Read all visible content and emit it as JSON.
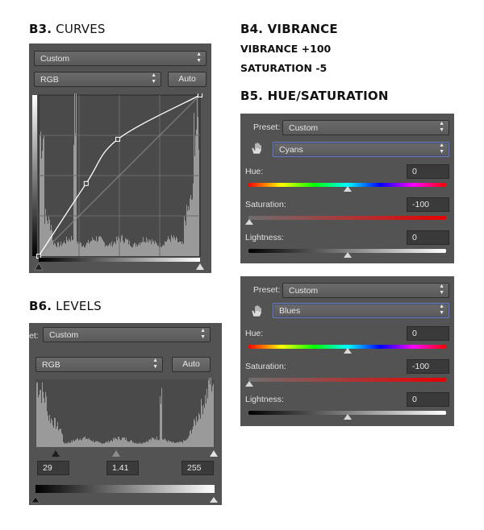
{
  "headings": {
    "b3": {
      "code": "B3.",
      "title": "CURVES"
    },
    "b4": {
      "code": "B4.",
      "title": "VIBRANCE"
    },
    "b4_lines": [
      "VIBRANCE +100",
      "SATURATION -5"
    ],
    "b5": {
      "code": "B5.",
      "title": "HUE/SATURATION"
    },
    "b6": {
      "code": "B6.",
      "title": "LEVELS"
    }
  },
  "curves": {
    "preset": "Custom",
    "channel": "RGB",
    "auto_label": "Auto",
    "points": [
      [
        0,
        0
      ],
      [
        75,
        115
      ],
      [
        125,
        185
      ],
      [
        255,
        255
      ]
    ]
  },
  "huesat1": {
    "preset_label": "Preset:",
    "preset": "Custom",
    "range": "Cyans",
    "hue_label": "Hue:",
    "hue": "0",
    "sat_label": "Saturation:",
    "sat": "-100",
    "light_label": "Lightness:",
    "light": "0"
  },
  "huesat2": {
    "preset_label": "Preset:",
    "preset": "Custom",
    "range": "Blues",
    "hue_label": "Hue:",
    "hue": "0",
    "sat_label": "Saturation:",
    "sat": "-100",
    "light_label": "Lightness:",
    "light": "0"
  },
  "levels": {
    "preset_label": "et:",
    "preset": "Custom",
    "channel": "RGB",
    "auto_label": "Auto",
    "black": "29",
    "gamma": "1.41",
    "white": "255"
  },
  "colors": {
    "panel": "#535353",
    "histogram": "#9a9a9a",
    "curve": "#ffffff"
  }
}
